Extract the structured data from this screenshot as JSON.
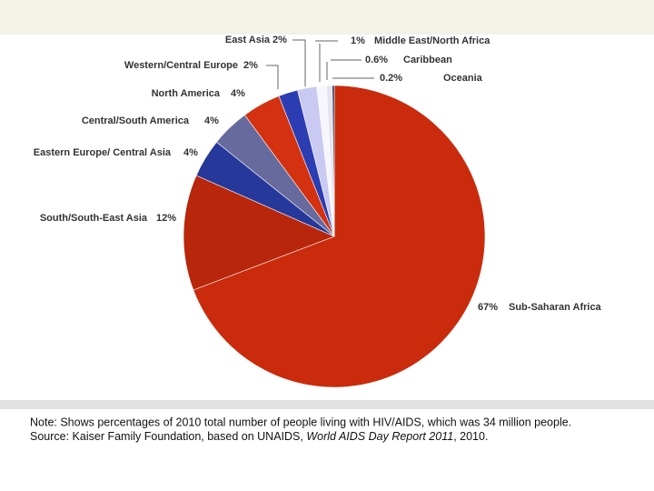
{
  "chart_data": {
    "type": "pie",
    "categories": [
      "Sub-Saharan Africa",
      "South/South-East Asia",
      "Eastern Europe/ Central Asia",
      "Central/South America",
      "North America",
      "Western/Central Europe",
      "East Asia",
      "Middle East/North Africa",
      "Caribbean",
      "Oceania"
    ],
    "values": [
      67,
      12,
      4,
      4,
      4,
      2,
      2,
      1,
      0.6,
      0.2
    ],
    "value_labels": [
      "67%",
      "12%",
      "4%",
      "4%",
      "4%",
      "2%",
      "2%",
      "1%",
      "0.6%",
      "0.2%"
    ],
    "colors": [
      "#c92b0c",
      "#b8260b",
      "#26389a",
      "#666a9c",
      "#d3310f",
      "#2c3db3",
      "#c9c9f2",
      "#f6f6ff",
      "#e4e4ee",
      "#18264c"
    ],
    "note": "Note: Shows percentages of 2010 total number of people living with HIV/AIDS, which was 34 million people.",
    "source": [
      "Source: Kaiser Family Foundation, based on UNAIDS, ",
      "World AIDS Day Report 2011",
      ", 2010."
    ]
  }
}
